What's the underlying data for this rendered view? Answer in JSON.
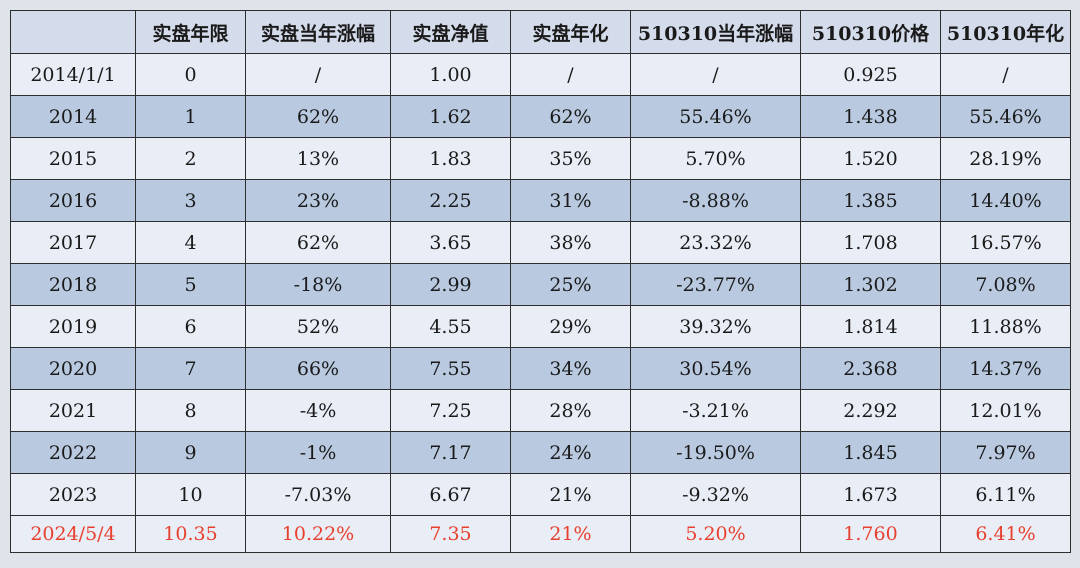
{
  "table": {
    "headers": [
      "",
      "实盘年限",
      "实盘当年涨幅",
      "实盘净值",
      "实盘年化",
      "510310当年涨幅",
      "510310价格",
      "510310年化"
    ],
    "rows": [
      [
        "2014/1/1",
        "0",
        "/",
        "1.00",
        "/",
        "/",
        "0.925",
        "/"
      ],
      [
        "2014",
        "1",
        "62%",
        "1.62",
        "62%",
        "55.46%",
        "1.438",
        "55.46%"
      ],
      [
        "2015",
        "2",
        "13%",
        "1.83",
        "35%",
        "5.70%",
        "1.520",
        "28.19%"
      ],
      [
        "2016",
        "3",
        "23%",
        "2.25",
        "31%",
        "-8.88%",
        "1.385",
        "14.40%"
      ],
      [
        "2017",
        "4",
        "62%",
        "3.65",
        "38%",
        "23.32%",
        "1.708",
        "16.57%"
      ],
      [
        "2018",
        "5",
        "-18%",
        "2.99",
        "25%",
        "-23.77%",
        "1.302",
        "7.08%"
      ],
      [
        "2019",
        "6",
        "52%",
        "4.55",
        "29%",
        "39.32%",
        "1.814",
        "11.88%"
      ],
      [
        "2020",
        "7",
        "66%",
        "7.55",
        "34%",
        "30.54%",
        "2.368",
        "14.37%"
      ],
      [
        "2021",
        "8",
        "-4%",
        "7.25",
        "28%",
        "-3.21%",
        "2.292",
        "12.01%"
      ],
      [
        "2022",
        "9",
        "-1%",
        "7.17",
        "24%",
        "-19.50%",
        "1.845",
        "7.97%"
      ],
      [
        "2023",
        "10",
        "-7.03%",
        "6.67",
        "21%",
        "-9.32%",
        "1.673",
        "6.11%"
      ],
      [
        "2024/5/4",
        "10.35",
        "10.22%",
        "7.35",
        "21%",
        "5.20%",
        "1.760",
        "6.41%"
      ]
    ],
    "highlight_color": "#e8402e"
  }
}
